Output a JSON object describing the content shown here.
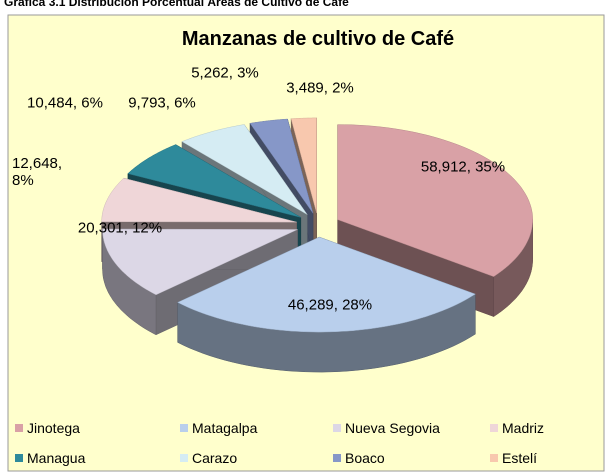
{
  "header": "Grafica 3.1 Distribución Porcentual Áreas de Cultivo de Café",
  "chart_data": {
    "type": "pie3d",
    "title": "Manzanas de cultivo de Café",
    "categories": [
      "Jinotega",
      "Matagalpa",
      "Nueva Segovia",
      "Madriz",
      "Managua",
      "Carazo",
      "Boaco",
      "Estelí"
    ],
    "values": [
      58912,
      46289,
      20301,
      12648,
      10484,
      9793,
      5262,
      3489
    ],
    "value_labels": [
      "58,912, 35%",
      "46,289, 28%",
      "20,301, 12%",
      "12,648, 8%",
      "10,484, 6%",
      "9,793, 6%",
      "5,262, 3%",
      "3,489, 2%"
    ],
    "colors": [
      "#d9a1a6",
      "#b9cfec",
      "#dcd7e6",
      "#efd6d8",
      "#2e8a9b",
      "#d5ecf3",
      "#8697c8",
      "#f8c8ae"
    ],
    "legend": "bottom"
  }
}
